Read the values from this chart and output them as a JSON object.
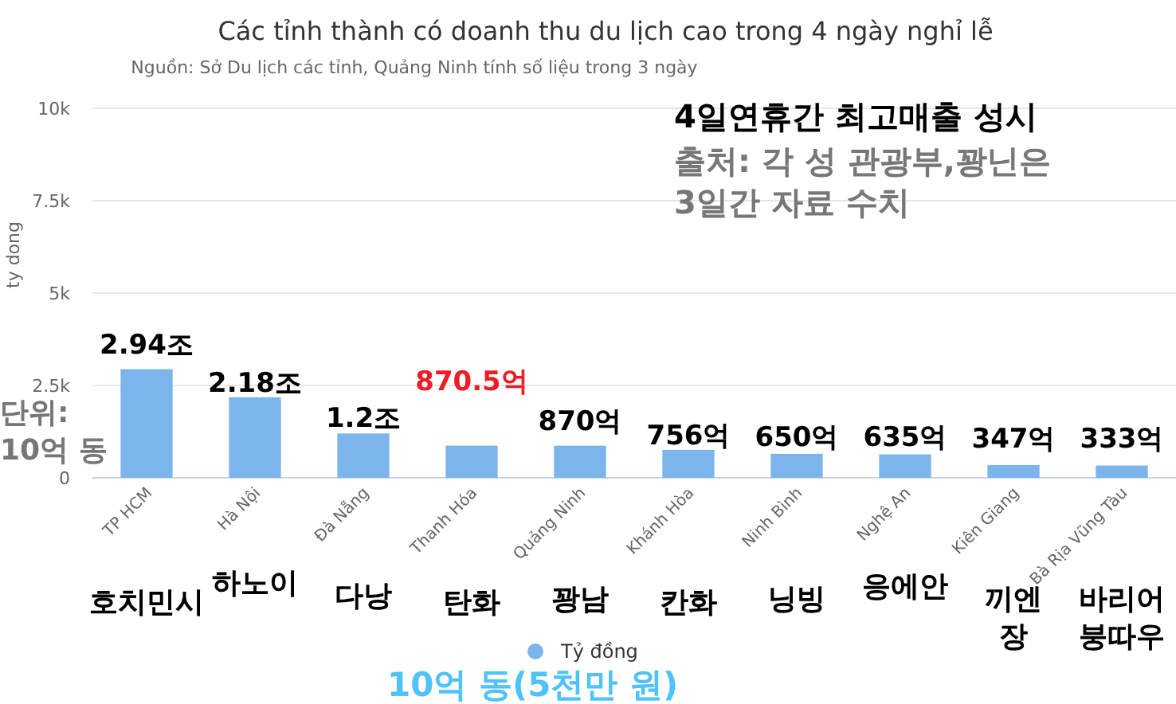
{
  "chart_data": {
    "type": "bar",
    "title": "Các tỉnh thành có doanh thu du lịch cao trong 4 ngày nghỉ lễ",
    "subtitle": "Nguồn: Sở Du lịch các tỉnh, Quảng Ninh tính số liệu trong 3 ngày",
    "ylabel": "ty dong",
    "categories": [
      "TP HCM",
      "Hà Nội",
      "Đà Nẵng",
      "Thanh Hóa",
      "Quảng Ninh",
      "Khánh Hòa",
      "Ninh Bình",
      "Nghệ An",
      "Kiên Giang",
      "Bà Rịa Vũng Tàu"
    ],
    "series": [
      {
        "name": "Tỷ đồng",
        "color": "#7cb5ec",
        "values": [
          2940,
          2180,
          1200,
          870.5,
          870,
          756,
          650,
          635,
          347,
          333
        ]
      }
    ],
    "ylim": [
      0,
      10000
    ],
    "yticks": [
      {
        "value": 0,
        "label": "0"
      },
      {
        "value": 2500,
        "label": "2.5k"
      },
      {
        "value": 5000,
        "label": "5k"
      },
      {
        "value": 7500,
        "label": "7.5k"
      },
      {
        "value": 10000,
        "label": "10k"
      }
    ],
    "grid": "y",
    "legend": "bottom",
    "annotations": [
      "4일연휴간 최고매출 성시",
      "출처: 각 성 관광부,꽝닌은\n3일간 자료 수치",
      "단위:\n10억 동",
      "10억 동(5천만 원)",
      "2.94조",
      "2.18조",
      "1.2조",
      "870.5억",
      "870억",
      "756억",
      "650억",
      "635억",
      "347억",
      "333억",
      "호치민시",
      "하노이",
      "다낭",
      "탄화",
      "꽝남",
      "칸화",
      "닝빙",
      "응에안",
      "끼엔\n장",
      "바리어\n붕따우"
    ]
  }
}
